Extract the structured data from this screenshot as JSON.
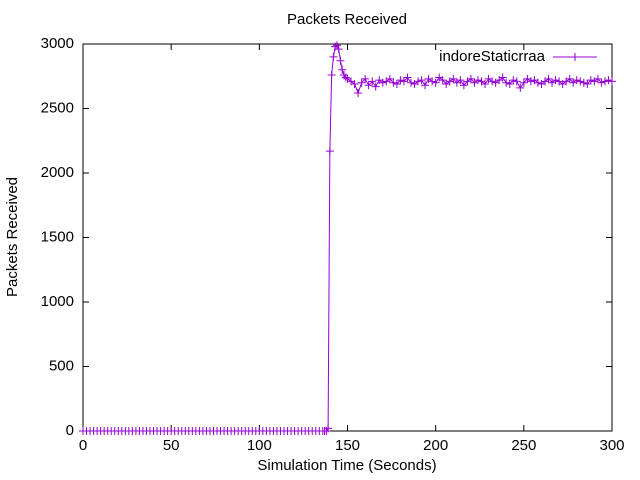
{
  "chart_data": {
    "type": "line",
    "title": "Packets Received",
    "x_label": "Simulation Time (Seconds)",
    "y_label": "Packets Received",
    "x": [
      0,
      2,
      4,
      6,
      8,
      10,
      12,
      14,
      16,
      18,
      20,
      22,
      24,
      26,
      28,
      30,
      32,
      34,
      36,
      38,
      40,
      42,
      44,
      46,
      48,
      50,
      52,
      54,
      56,
      58,
      60,
      62,
      64,
      66,
      68,
      70,
      72,
      74,
      76,
      78,
      80,
      82,
      84,
      86,
      88,
      90,
      92,
      94,
      96,
      98,
      100,
      102,
      104,
      106,
      108,
      110,
      112,
      114,
      116,
      118,
      120,
      122,
      124,
      126,
      128,
      130,
      132,
      134,
      136,
      137,
      138,
      139,
      140,
      141,
      142,
      143,
      144,
      145,
      146,
      147,
      148,
      149,
      150,
      152,
      154,
      156,
      158,
      160,
      162,
      164,
      166,
      168,
      170,
      172,
      174,
      176,
      178,
      180,
      182,
      184,
      186,
      188,
      190,
      192,
      194,
      196,
      198,
      200,
      202,
      204,
      206,
      208,
      210,
      212,
      214,
      216,
      218,
      220,
      222,
      224,
      226,
      228,
      230,
      232,
      234,
      236,
      238,
      240,
      242,
      244,
      246,
      248,
      250,
      252,
      254,
      256,
      258,
      260,
      262,
      264,
      266,
      268,
      270,
      272,
      274,
      276,
      278,
      280,
      282,
      284,
      286,
      288,
      290,
      292,
      294,
      296,
      298,
      300
    ],
    "series": [
      {
        "name": "indoreStaticrraa",
        "color": "#9400d3",
        "values": [
          0,
          0,
          0,
          0,
          0,
          0,
          0,
          0,
          0,
          0,
          0,
          0,
          0,
          0,
          0,
          0,
          0,
          0,
          0,
          0,
          0,
          0,
          0,
          0,
          0,
          0,
          0,
          0,
          0,
          0,
          0,
          0,
          0,
          0,
          0,
          0,
          0,
          0,
          0,
          0,
          0,
          0,
          0,
          0,
          0,
          0,
          0,
          0,
          0,
          0,
          0,
          0,
          0,
          0,
          0,
          0,
          0,
          0,
          0,
          0,
          0,
          0,
          0,
          0,
          0,
          0,
          0,
          0,
          0,
          0,
          0,
          20,
          2170,
          2760,
          2900,
          2980,
          2990,
          2960,
          2870,
          2800,
          2760,
          2740,
          2730,
          2710,
          2690,
          2620,
          2700,
          2730,
          2680,
          2710,
          2670,
          2720,
          2700,
          2710,
          2730,
          2700,
          2690,
          2720,
          2710,
          2740,
          2700,
          2690,
          2710,
          2720,
          2680,
          2730,
          2710,
          2700,
          2740,
          2720,
          2690,
          2710,
          2730,
          2700,
          2720,
          2680,
          2710,
          2730,
          2700,
          2720,
          2710,
          2690,
          2730,
          2710,
          2700,
          2720,
          2740,
          2700,
          2690,
          2720,
          2710,
          2660,
          2700,
          2730,
          2710,
          2720,
          2700,
          2690,
          2710,
          2730,
          2700,
          2720,
          2710,
          2690,
          2710,
          2730,
          2700,
          2720,
          2710,
          2700,
          2690,
          2720,
          2710,
          2730,
          2700,
          2710,
          2720,
          2710
        ]
      }
    ],
    "xlim": [
      0,
      300
    ],
    "xticks": [
      0,
      50,
      100,
      150,
      200,
      250,
      300
    ],
    "ylim": [
      0,
      3000
    ],
    "yticks": [
      0,
      500,
      1000,
      1500,
      2000,
      2500,
      3000
    ],
    "legend": "top-right",
    "grid": false
  }
}
